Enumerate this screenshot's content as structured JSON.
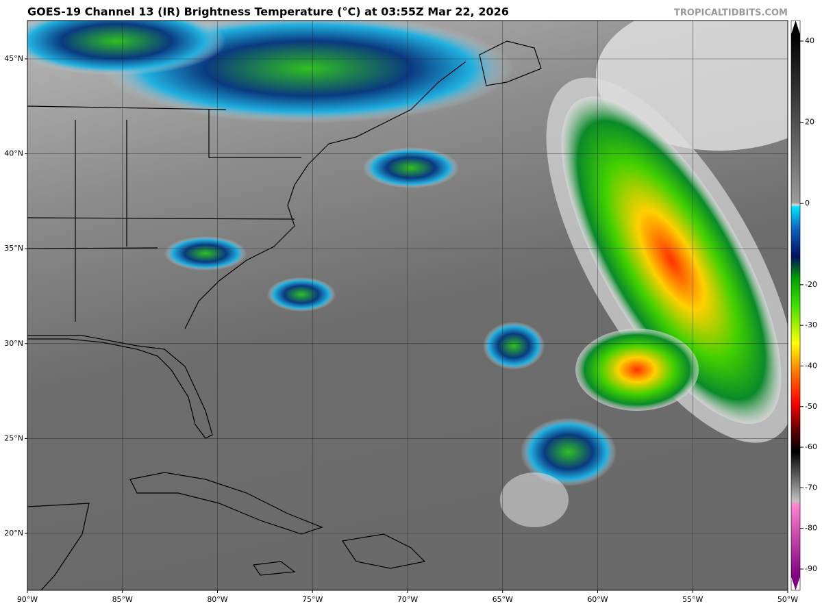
{
  "header": {
    "title": "GOES-19 Channel 13 (IR) Brightness Temperature (°C) at 03:55Z Mar 22, 2026",
    "watermark": "TROPICALTIDBITS.COM"
  },
  "map": {
    "lat_labels": [
      "45°N",
      "40°N",
      "35°N",
      "30°N",
      "25°N",
      "20°N"
    ],
    "lon_labels": [
      "90°W",
      "85°W",
      "80°W",
      "75°W",
      "70°W",
      "65°W",
      "60°W",
      "55°W",
      "50°W"
    ]
  },
  "colorbar": {
    "ticks": [
      40,
      20,
      0,
      -20,
      -30,
      -40,
      -50,
      -60,
      -70,
      -80,
      -90
    ]
  }
}
